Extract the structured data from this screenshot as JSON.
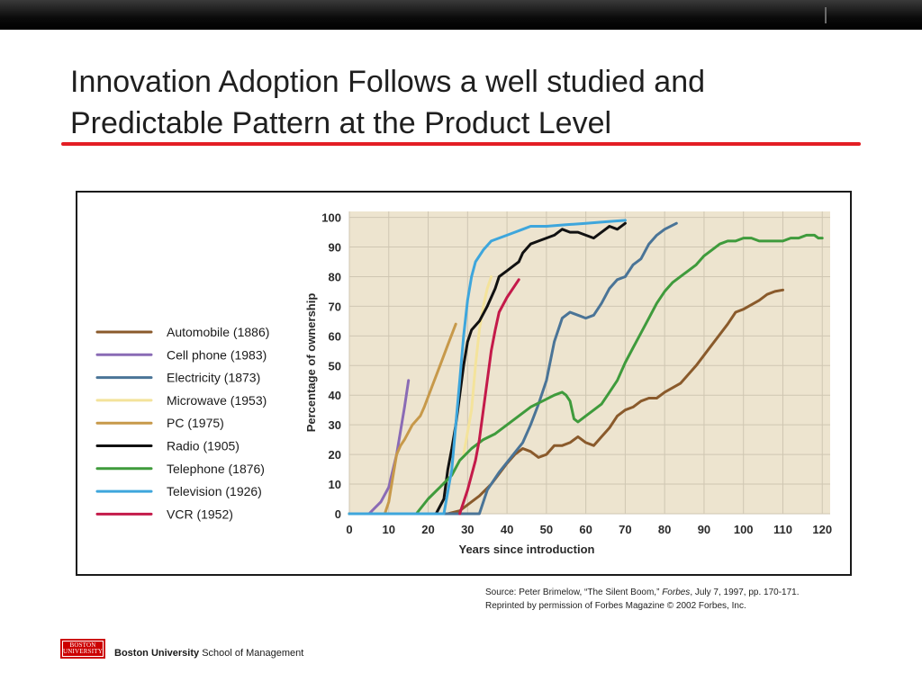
{
  "slide": {
    "title_line1": "Innovation Adoption Follows a well studied and",
    "title_line2": "Predictable Pattern at the Product Level"
  },
  "source": {
    "line1_prefix": "Source:  Peter Brimelow, “The Silent Boom,” ",
    "line1_publication": "Forbes",
    "line1_suffix": ", July 7, 1997, pp. 170-171.",
    "line2": "Reprinted by permission of Forbes Magazine © 2002 Forbes, Inc."
  },
  "footer": {
    "logo_line1": "BOSTON",
    "logo_line2": "UNIVERSITY",
    "org_bold": "Boston University",
    "org_rest": " School of Management"
  },
  "colors": {
    "accent_red": "#e31e24",
    "plot_bg": "#ede4cf",
    "grid": "#cfc6b2"
  },
  "chart_data": {
    "type": "line",
    "title": "",
    "xlabel": "Years since introduction",
    "ylabel": "Percentage of ownership",
    "xlim": [
      0,
      122
    ],
    "ylim": [
      0,
      102
    ],
    "xticks": [
      0,
      10,
      20,
      30,
      40,
      50,
      60,
      70,
      80,
      90,
      100,
      110,
      120
    ],
    "yticks": [
      0,
      10,
      20,
      30,
      40,
      50,
      60,
      70,
      80,
      90,
      100
    ],
    "grid": true,
    "legend_position": "left",
    "series": [
      {
        "name": "Automobile (1886)",
        "color": "#8a5a2b",
        "x": [
          0,
          25,
          28,
          30,
          33,
          36,
          40,
          42,
          44,
          46,
          48,
          50,
          52,
          54,
          56,
          58,
          60,
          62,
          64,
          66,
          68,
          70,
          72,
          74,
          76,
          78,
          80,
          84,
          88,
          92,
          96,
          98,
          100,
          104,
          106,
          108,
          110
        ],
        "y": [
          0,
          0,
          1,
          3,
          6,
          10,
          17,
          20,
          22,
          21,
          19,
          20,
          23,
          23,
          24,
          26,
          24,
          23,
          26,
          29,
          33,
          35,
          36,
          38,
          39,
          39,
          41,
          44,
          50,
          57,
          64,
          68,
          69,
          72,
          74,
          75,
          75.5
        ]
      },
      {
        "name": "Cell phone (1983)",
        "color": "#8a6bb5",
        "x": [
          0,
          5,
          8,
          10,
          12,
          13,
          14,
          15
        ],
        "y": [
          0,
          0,
          4,
          9,
          20,
          28,
          36,
          45
        ]
      },
      {
        "name": "Electricity (1873)",
        "color": "#4a7497",
        "x": [
          0,
          33,
          35,
          38,
          41,
          44,
          46,
          48,
          50,
          52,
          54,
          56,
          58,
          60,
          62,
          64,
          66,
          68,
          70,
          72,
          74,
          76,
          78,
          80,
          83
        ],
        "y": [
          0,
          0,
          8,
          14,
          19,
          24,
          30,
          37,
          45,
          58,
          66,
          68,
          67,
          66,
          67,
          71,
          76,
          79,
          80,
          84,
          86,
          91,
          94,
          96,
          98
        ]
      },
      {
        "name": "Microwave (1953)",
        "color": "#f4e39b",
        "x": [
          29,
          31,
          32,
          33,
          34,
          35,
          36
        ],
        "y": [
          20,
          35,
          50,
          62,
          70,
          76,
          80
        ]
      },
      {
        "name": "PC (1975)",
        "color": "#c7994a",
        "x": [
          9,
          10,
          11,
          12,
          13,
          14,
          16,
          18,
          19,
          21,
          23,
          25,
          27
        ],
        "y": [
          0,
          4,
          12,
          20,
          23,
          25,
          30,
          33,
          36,
          43,
          50,
          57,
          64
        ]
      },
      {
        "name": "Radio (1905)",
        "color": "#111111",
        "x": [
          0,
          22,
          24,
          25,
          26,
          27,
          28,
          29,
          30,
          31,
          33,
          35,
          37,
          38,
          40,
          42,
          43,
          44,
          46,
          48,
          50,
          52,
          54,
          56,
          58,
          60,
          62,
          64,
          66,
          68,
          70
        ],
        "y": [
          0,
          0,
          5,
          15,
          22,
          30,
          40,
          50,
          58,
          62,
          65,
          70,
          76,
          80,
          82,
          84,
          85,
          88,
          91,
          92,
          93,
          94,
          96,
          95,
          95,
          94,
          93,
          95,
          97,
          96,
          98
        ]
      },
      {
        "name": "Telephone (1876)",
        "color": "#3f9b3c",
        "x": [
          0,
          17,
          20,
          23,
          26,
          28,
          31,
          34,
          37,
          40,
          43,
          46,
          49,
          52,
          54,
          55,
          56,
          57,
          58,
          60,
          62,
          64,
          66,
          68,
          70,
          72,
          74,
          76,
          78,
          80,
          82,
          85,
          88,
          90,
          92,
          94,
          96,
          98,
          100,
          102,
          104,
          108,
          110,
          112,
          114,
          116,
          118,
          119,
          120
        ],
        "y": [
          0,
          0,
          5,
          9,
          13,
          18,
          22,
          25,
          27,
          30,
          33,
          36,
          38,
          40,
          41,
          40,
          38,
          32,
          31,
          33,
          35,
          37,
          41,
          45,
          51,
          56,
          61,
          66,
          71,
          75,
          78,
          81,
          84,
          87,
          89,
          91,
          92,
          92,
          93,
          93,
          92,
          92,
          92,
          93,
          93,
          94,
          94,
          93,
          93
        ]
      },
      {
        "name": "Television (1926)",
        "color": "#3ea6dc",
        "x": [
          0,
          24,
          26,
          27,
          28,
          29,
          30,
          31,
          32,
          34,
          36,
          38,
          40,
          42,
          44,
          46,
          50,
          55,
          60,
          65,
          70
        ],
        "y": [
          0,
          0,
          15,
          30,
          45,
          60,
          72,
          80,
          85,
          89,
          92,
          93,
          94,
          95,
          96,
          97,
          97,
          97.5,
          98,
          98.5,
          99
        ]
      },
      {
        "name": "VCR (1952)",
        "color": "#c41a4a",
        "x": [
          28,
          30,
          32,
          33,
          34,
          35,
          36,
          37,
          38,
          40,
          42,
          43
        ],
        "y": [
          0,
          8,
          18,
          25,
          35,
          45,
          55,
          62,
          68,
          73,
          77,
          79
        ]
      }
    ]
  }
}
